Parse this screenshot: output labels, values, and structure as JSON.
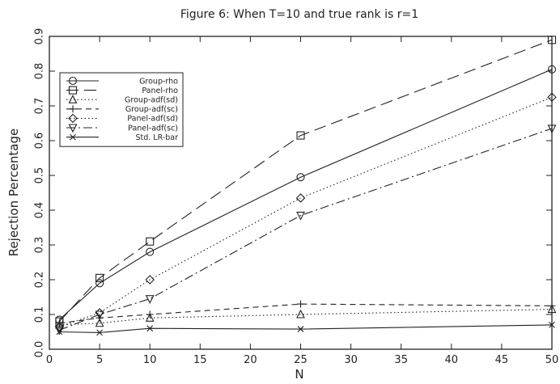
{
  "chart_data": {
    "type": "line",
    "title": "Figure 6: When T=10 and true rank is r=1",
    "xlabel": "N",
    "ylabel": "Rejection Percentage",
    "xlim": [
      0,
      50
    ],
    "ylim": [
      0.0,
      0.9
    ],
    "xticks": [
      0,
      5,
      10,
      15,
      20,
      25,
      30,
      35,
      40,
      45,
      50
    ],
    "yticks": [
      "0.0",
      "0.1",
      "0.2",
      "0.3",
      "0.4",
      "0.5",
      "0.6",
      "0.7",
      "0.8",
      "0.9"
    ],
    "grid": false,
    "legend_position": "top-left",
    "x": [
      1,
      5,
      10,
      25,
      50
    ],
    "series": [
      {
        "name": "Group-rho",
        "values": [
          0.085,
          0.19,
          0.28,
          0.495,
          0.805
        ],
        "marker": "circle",
        "dash": "solid"
      },
      {
        "name": "Panel-rho",
        "values": [
          0.08,
          0.205,
          0.31,
          0.615,
          0.89
        ],
        "marker": "square",
        "dash": "long-dash"
      },
      {
        "name": "Group-adf(sd)",
        "values": [
          0.07,
          0.075,
          0.09,
          0.1,
          0.115
        ],
        "marker": "triangle-up",
        "dash": "dotted"
      },
      {
        "name": "Group-adf(sc)",
        "values": [
          0.075,
          0.09,
          0.1,
          0.13,
          0.125
        ],
        "marker": "plus",
        "dash": "short-dash"
      },
      {
        "name": "Panel-adf(sd)",
        "values": [
          0.065,
          0.105,
          0.2,
          0.435,
          0.725
        ],
        "marker": "diamond",
        "dash": "dotted"
      },
      {
        "name": "Panel-adf(sc)",
        "values": [
          0.055,
          0.1,
          0.145,
          0.385,
          0.635
        ],
        "marker": "triangle-down",
        "dash": "dash-dot"
      },
      {
        "name": "Std. LR-bar",
        "values": [
          0.05,
          0.048,
          0.06,
          0.058,
          0.07
        ],
        "marker": "cross",
        "dash": "solid"
      }
    ]
  }
}
